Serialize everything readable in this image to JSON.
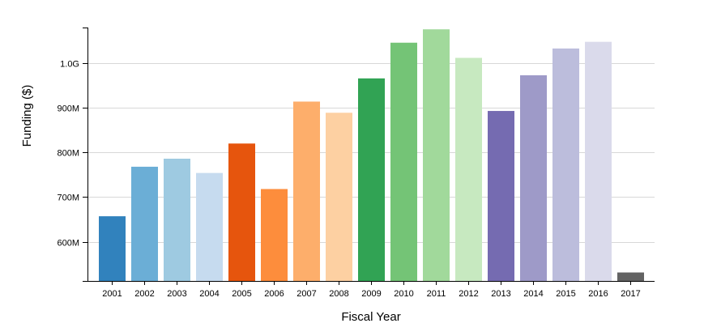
{
  "chart_data": {
    "type": "bar",
    "title": "",
    "xlabel": "Fiscal Year",
    "ylabel": "Funding ($)",
    "categories": [
      "2001",
      "2002",
      "2003",
      "2004",
      "2005",
      "2006",
      "2007",
      "2008",
      "2009",
      "2010",
      "2011",
      "2012",
      "2013",
      "2014",
      "2015",
      "2016",
      "2017"
    ],
    "values": [
      657000000,
      768000000,
      786000000,
      754000000,
      820000000,
      718000000,
      914000000,
      889000000,
      966000000,
      1046000000,
      1076000000,
      1012000000,
      893000000,
      973000000,
      1033000000,
      1048000000,
      531000000
    ],
    "colors": [
      "#3182bd",
      "#6baed6",
      "#9ecae1",
      "#c6dbef",
      "#e6550d",
      "#fd8d3c",
      "#fdae6b",
      "#fdd0a2",
      "#31a354",
      "#74c476",
      "#a1d99b",
      "#c7e9c0",
      "#756bb1",
      "#9e9ac8",
      "#bcbddc",
      "#dadaeb",
      "#636363"
    ],
    "yticks": [
      600000000,
      700000000,
      800000000,
      900000000,
      1000000000
    ],
    "ytick_labels": [
      "600M",
      "700M",
      "800M",
      "900M",
      "1.0G"
    ],
    "ylim": [
      512000000,
      1080000000
    ],
    "grid": true,
    "legend": "none"
  }
}
